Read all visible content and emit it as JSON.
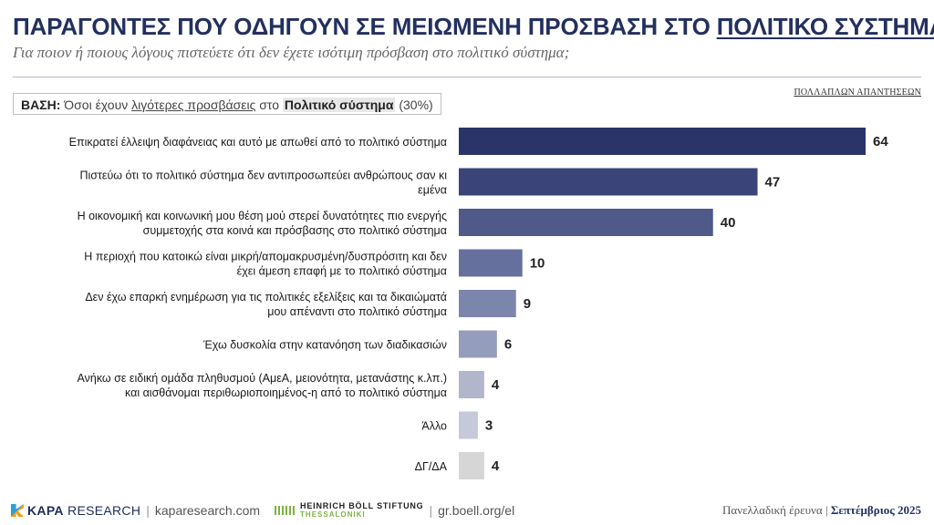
{
  "header": {
    "title_main": "ΠΑΡΑΓΟΝΤΕΣ ΠΟΥ ΟΔΗΓΟΥΝ ΣΕ ΜΕΙΩΜΕΝΗ ΠΡΟΣΒΑΣΗ ΣΤΟ ",
    "title_underlined": "ΠΟΛΙΤΙΚΟ ΣΥΣΤΗΜΑ",
    "subtitle": "Για ποιον ή ποιους λόγους πιστεύετε ότι δεν έχετε ισότιμη πρόσβαση στο πολιτικό σύστημα;",
    "multi_answer_note": "ΠΟΛΛΑΠΛΩΝ ΑΠΑΝΤΗΣΕΩΝ"
  },
  "base": {
    "label": "ΒΑΣΗ:",
    "text_1": " Όσοι έχουν ",
    "text_underlined": "λιγότερες προσβάσεις",
    "text_2": " στο ",
    "text_highlight": "Πολιτικό σύστημα",
    "text_3": " (30%)"
  },
  "chart_data": {
    "type": "bar",
    "orientation": "horizontal",
    "categories": [
      "Επικρατεί έλλειψη διαφάνειας και αυτό με απωθεί από το πολιτικό σύστημα",
      "Πιστεύω ότι το πολιτικό σύστημα δεν αντιπροσωπεύει ανθρώπους σαν κι εμένα",
      "Η οικονομική και κοινωνική μου θέση μού στερεί δυνατότητες πιο ενεργής συμμετοχής στα κοινά και πρόσβασης στο πολιτικό σύστημα",
      "Η περιοχή που κατοικώ είναι μικρή/απομακρυσμένη/δυσπρόσιτη και δεν έχει άμεση επαφή με το πολιτικό σύστημα",
      "Δεν έχω επαρκή ενημέρωση για τις πολιτικές εξελίξεις και τα δικαιώματά μου απέναντι στο πολιτικό σύστημα",
      "Έχω δυσκολία στην κατανόηση των διαδικασιών",
      "Ανήκω σε ειδική ομάδα πληθυσμού (ΑμεΑ, μειονότητα, μετανάστης κ.λπ.) και αισθάνομαι περιθωριοποιημένος-η από το πολιτικό σύστημα",
      "Άλλο",
      "ΔΓ/ΔΑ"
    ],
    "label_lines": [
      [
        "Επικρατεί έλλειψη διαφάνειας και αυτό με απωθεί από το πολιτικό σύστημα"
      ],
      [
        "Πιστεύω ότι το πολιτικό σύστημα δεν αντιπροσωπεύει ανθρώπους σαν κι",
        "εμένα"
      ],
      [
        "Η οικονομική και κοινωνική μου θέση μού στερεί δυνατότητες πιο ενεργής",
        "συμμετοχής στα κοινά και πρόσβασης στο πολιτικό σύστημα"
      ],
      [
        "Η περιοχή που κατοικώ είναι μικρή/απομακρυσμένη/δυσπρόσιτη και δεν",
        "έχει άμεση επαφή με το πολιτικό σύστημα"
      ],
      [
        "Δεν έχω επαρκή ενημέρωση για τις πολιτικές εξελίξεις και τα δικαιώματά",
        "μου απέναντι στο πολιτικό σύστημα"
      ],
      [
        "Έχω δυσκολία στην κατανόηση των διαδικασιών"
      ],
      [
        "Ανήκω σε ειδική ομάδα πληθυσμού (ΑμεΑ, μειονότητα, μετανάστης κ.λπ.)",
        "και αισθάνομαι περιθωριοποιημένος-η από το πολιτικό σύστημα"
      ],
      [
        "Άλλο"
      ],
      [
        "ΔΓ/ΔΑ"
      ]
    ],
    "values": [
      64,
      47,
      40,
      10,
      9,
      6,
      4,
      3,
      4
    ],
    "colors": [
      "#2b3468",
      "#3a4478",
      "#4f5a8a",
      "#66709c",
      "#7c85ab",
      "#959dbd",
      "#b1b6cd",
      "#c6c9d9",
      "#d6d6d6"
    ],
    "xlim": [
      0,
      70
    ],
    "grid": false,
    "legend": "none"
  },
  "footer": {
    "kapa_logo_bold": "KAPA",
    "kapa_logo_thin": " RESEARCH",
    "kapa_url": "kaparesearch.com",
    "boell_line1": "HEINRICH BÖLL STIFTUNG",
    "boell_line2": "THESSALONIKI",
    "boell_url": "gr.boell.org/el",
    "survey_label": "Πανελλαδική έρευνα",
    "date_label": "Σεπτέμβριος 2025"
  }
}
